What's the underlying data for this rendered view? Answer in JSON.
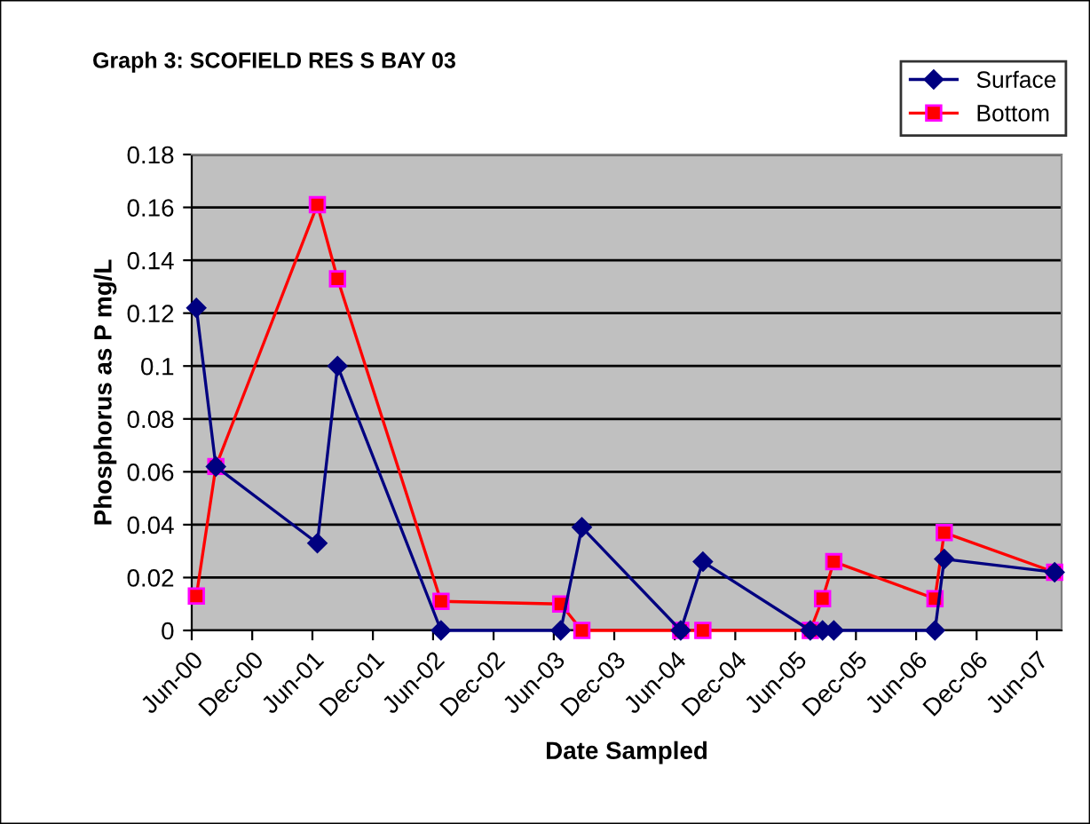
{
  "chart_data": {
    "type": "line",
    "title": "Graph 3: SCOFIELD RES S BAY 03",
    "xlabel": "Date Sampled",
    "ylabel": "Phosphorus as P mg/L",
    "x": [
      "2000-06-15",
      "2000-08-13",
      "2001-06-16",
      "2001-08-16",
      "2002-06-25",
      "2003-06-22",
      "2003-08-25",
      "2004-06-19",
      "2004-08-25",
      "2005-07-16",
      "2005-08-22",
      "2005-09-25",
      "2006-07-28",
      "2006-08-25",
      "2007-07-25"
    ],
    "series": [
      {
        "name": "Surface",
        "color": "#000080",
        "marker": "diamond",
        "values": [
          0.122,
          0.062,
          0.033,
          0.1,
          0,
          0,
          0.039,
          0,
          0.026,
          0,
          0,
          0,
          0,
          0.027,
          0.022
        ]
      },
      {
        "name": "Bottom",
        "color": "#ff0000",
        "marker": "square",
        "values": [
          0.013,
          0.062,
          0.161,
          0.133,
          0.011,
          0.01,
          0,
          0,
          0,
          0,
          0.012,
          0.026,
          0.012,
          0.037,
          0.022
        ]
      }
    ],
    "xlim": [
      "2000-06-01",
      "2007-08-15"
    ],
    "xticks": [
      {
        "value": "2000-06-01",
        "label": "Jun-00"
      },
      {
        "value": "2000-12-01",
        "label": "Dec-00"
      },
      {
        "value": "2001-06-01",
        "label": "Jun-01"
      },
      {
        "value": "2001-12-01",
        "label": "Dec-01"
      },
      {
        "value": "2002-06-01",
        "label": "Jun-02"
      },
      {
        "value": "2002-12-01",
        "label": "Dec-02"
      },
      {
        "value": "2003-06-01",
        "label": "Jun-03"
      },
      {
        "value": "2003-12-01",
        "label": "Dec-03"
      },
      {
        "value": "2004-06-01",
        "label": "Jun-04"
      },
      {
        "value": "2004-12-01",
        "label": "Dec-04"
      },
      {
        "value": "2005-06-01",
        "label": "Jun-05"
      },
      {
        "value": "2005-12-01",
        "label": "Dec-05"
      },
      {
        "value": "2006-06-01",
        "label": "Jun-06"
      },
      {
        "value": "2006-12-01",
        "label": "Dec-06"
      },
      {
        "value": "2007-06-01",
        "label": "Jun-07"
      }
    ],
    "ylim": [
      0,
      0.18
    ],
    "yticks": [
      0,
      0.02,
      0.04,
      0.06,
      0.08,
      0.1,
      0.12,
      0.14,
      0.16,
      0.18
    ],
    "grid": "y",
    "legend": "top right",
    "line_style": "solid"
  }
}
